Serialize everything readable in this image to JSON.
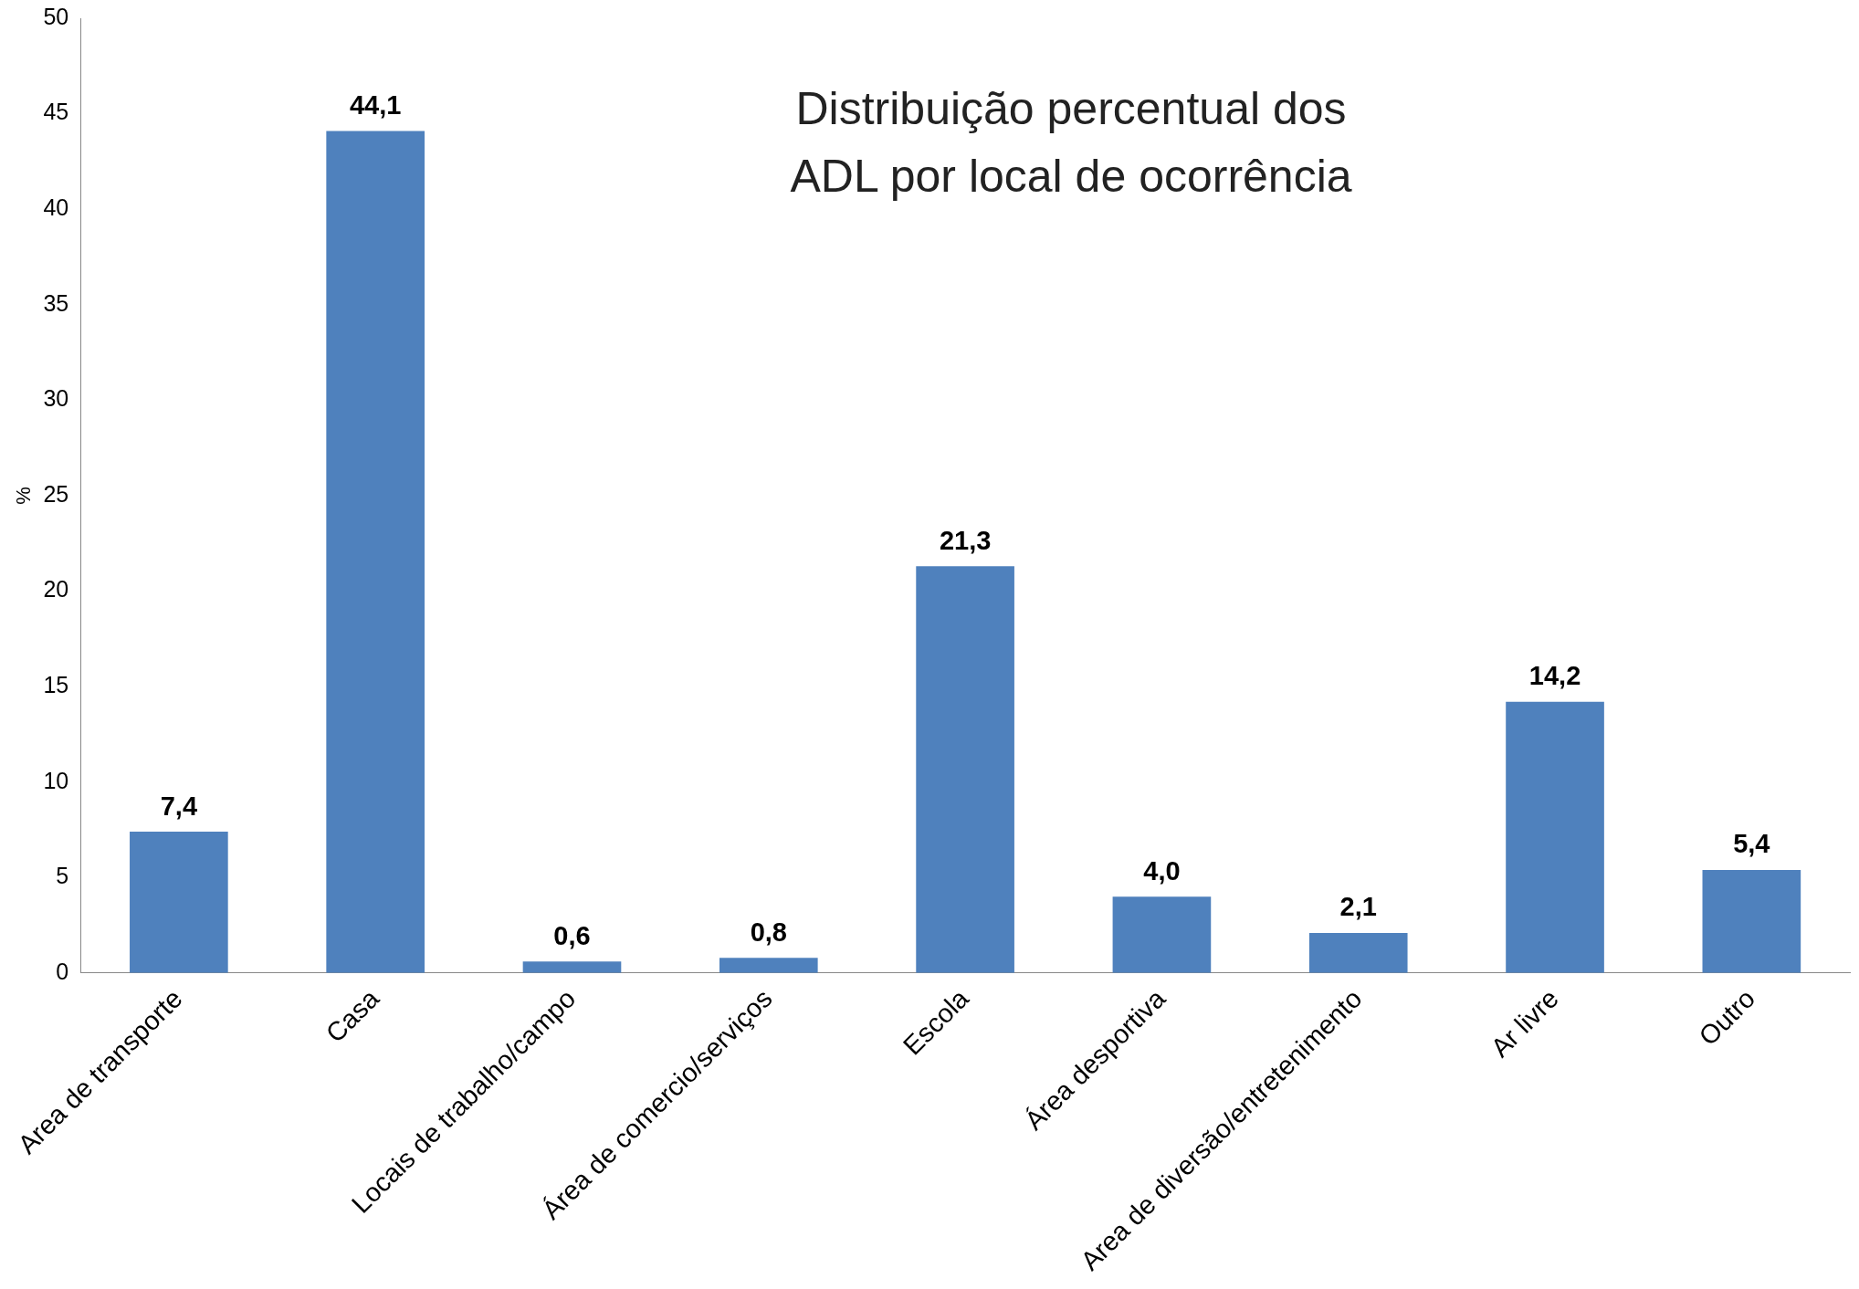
{
  "chart_data": {
    "type": "bar",
    "title": "Distribuição percentual dos\nADL por local de ocorrência",
    "ylabel": "%",
    "categories": [
      "Area de transporte",
      "Casa",
      "Locais de trabalho/campo",
      "Área de comercio/serviços",
      "Escola",
      "Área desportiva",
      "Area de diversão/entretenimento",
      "Ar livre",
      "Outro"
    ],
    "values": [
      7.4,
      44.1,
      0.6,
      0.8,
      21.3,
      4.0,
      2.1,
      14.2,
      5.4
    ],
    "value_labels": [
      "7,4",
      "44,1",
      "0,6",
      "0,8",
      "21,3",
      "4,0",
      "2,1",
      "14,2",
      "5,4"
    ],
    "color": "#4f81bd",
    "ylim": [
      0,
      50
    ],
    "yticks": [
      0,
      5,
      10,
      15,
      20,
      25,
      30,
      35,
      40,
      45,
      50
    ],
    "grid": false,
    "legend": false
  }
}
